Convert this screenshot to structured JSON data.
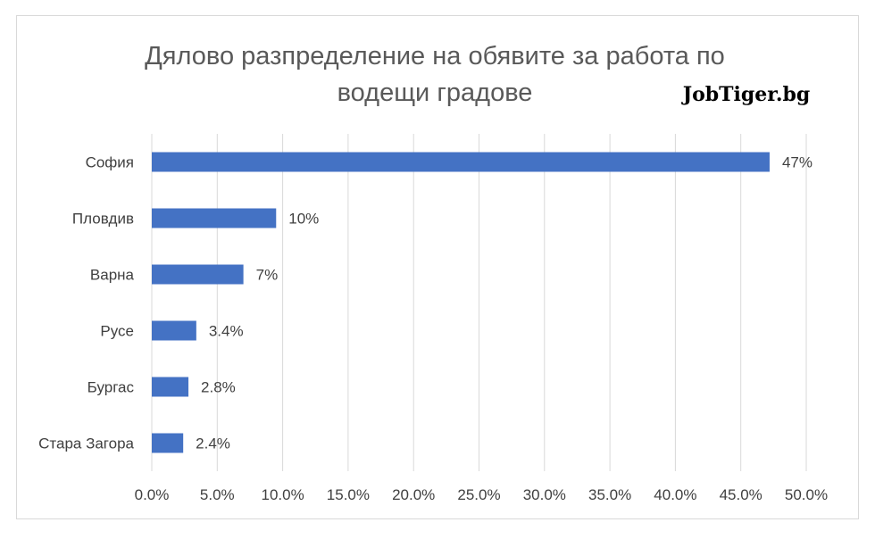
{
  "chart_data": {
    "type": "bar",
    "orientation": "horizontal",
    "title_lines": [
      "Дялово разпределение на обявите за работа по",
      "водещи градове"
    ],
    "brand": "JobTiger.bg",
    "categories": [
      "София",
      "Пловдив",
      "Варна",
      "Русе",
      "Бургас",
      "Стара Загора"
    ],
    "values": [
      47.2,
      9.5,
      7.0,
      3.4,
      2.8,
      2.4
    ],
    "data_labels": [
      "47%",
      "10%",
      "7%",
      "3.4%",
      "2.8%",
      "2.4%"
    ],
    "x_ticks": [
      "0.0%",
      "5.0%",
      "10.0%",
      "15.0%",
      "20.0%",
      "25.0%",
      "30.0%",
      "35.0%",
      "40.0%",
      "45.0%",
      "50.0%"
    ],
    "xlim": [
      0,
      50
    ],
    "grid": true,
    "bar_color": "#4472c4",
    "grid_color": "#d9d9d9"
  }
}
